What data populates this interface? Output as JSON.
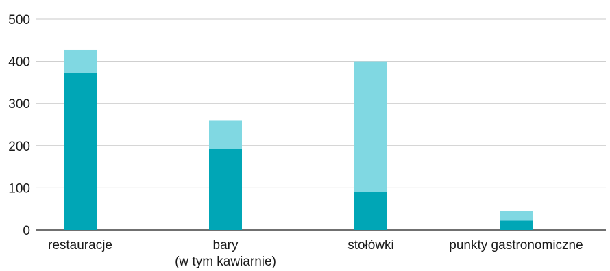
{
  "colors": {
    "series_1": "#00a6b6",
    "series_2": "#80d8e2",
    "grid": "#c8c8c8",
    "axis": "#1a1a1a"
  },
  "chart_data": {
    "type": "bar",
    "stacked": true,
    "categories": [
      [
        "restauracje"
      ],
      [
        "bary",
        "(w tym kawiarnie)"
      ],
      [
        "stołówki"
      ],
      [
        "punkty gastronomiczne"
      ]
    ],
    "series": [
      {
        "values": [
          372,
          193,
          90,
          22
        ]
      },
      {
        "values": [
          55,
          66,
          310,
          22
        ]
      }
    ],
    "title": "",
    "xlabel": "",
    "ylabel": "",
    "ylim": [
      0,
      500
    ],
    "yticks": [
      "0",
      "100",
      "200",
      "300",
      "400",
      "500"
    ],
    "grid": true,
    "legend": "none"
  }
}
